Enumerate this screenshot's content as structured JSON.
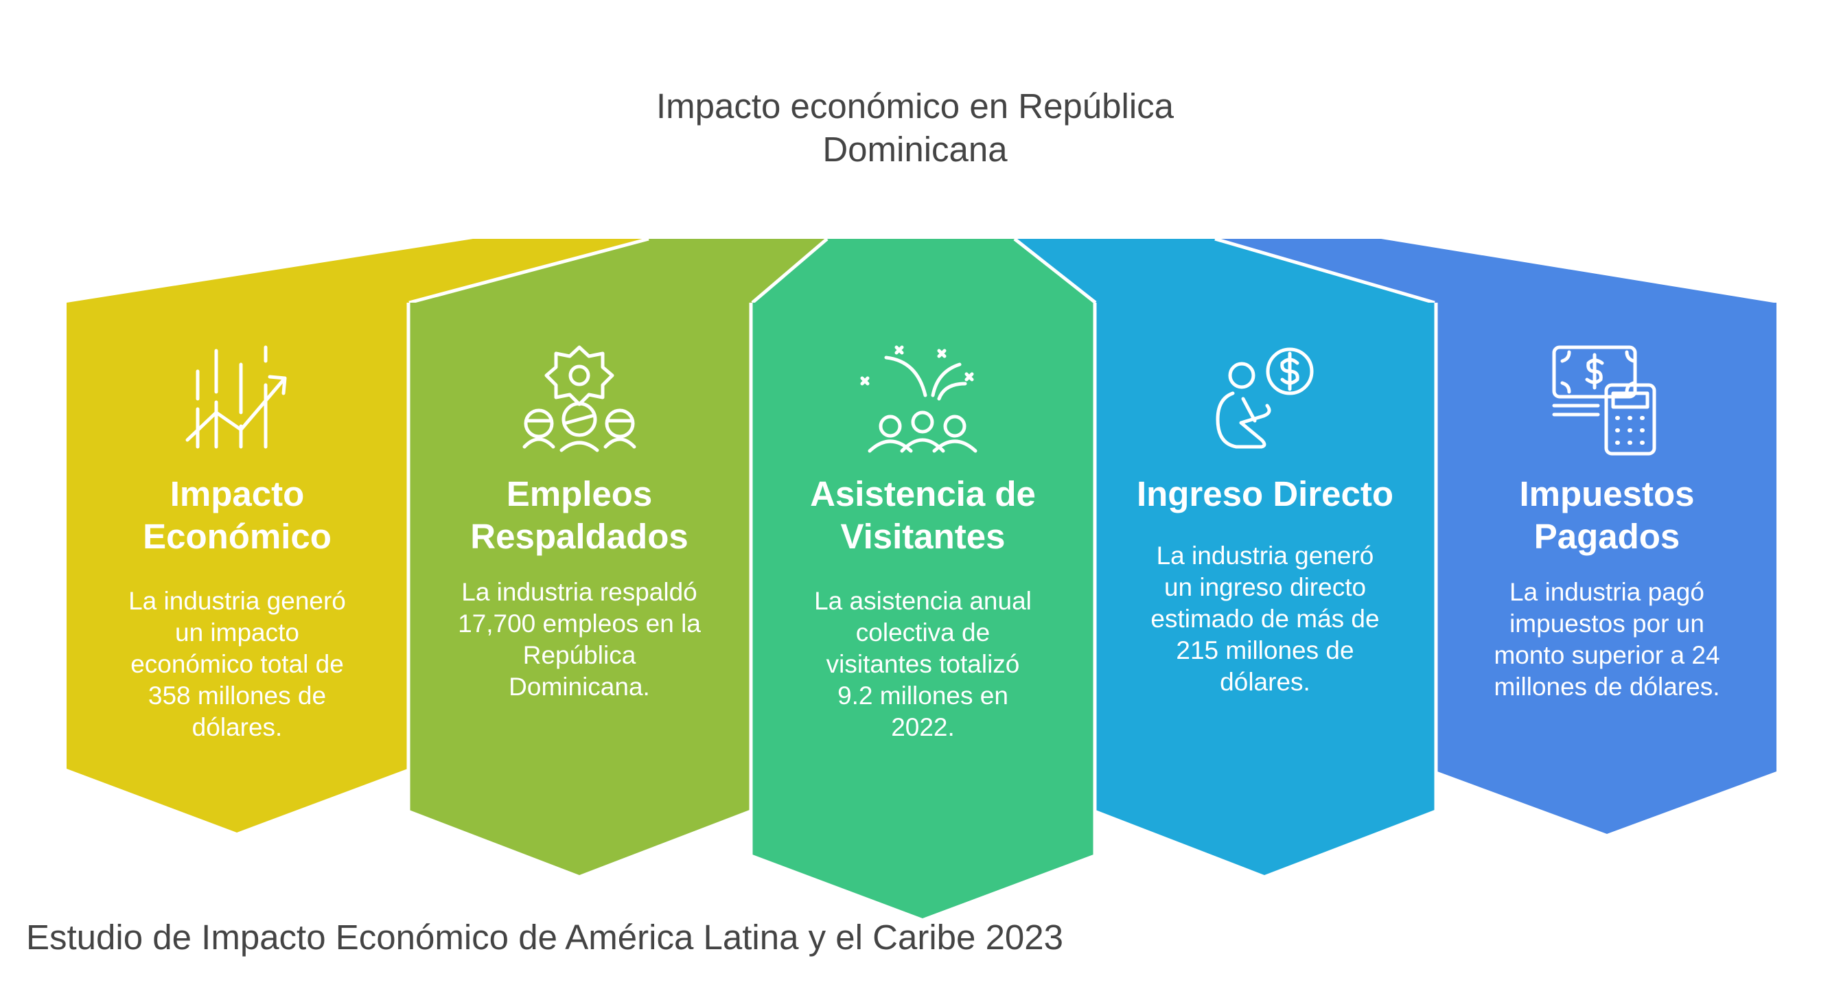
{
  "title": {
    "line1": "Impacto económico en República",
    "line2": "Dominicana"
  },
  "footer": "Estudio de Impacto Económico de América Latina y el Caribe 2023",
  "colors": {
    "yellow": "#DFCB16",
    "olive": "#93BE3E",
    "green": "#3CC583",
    "sky": "#1FA8DA",
    "blue": "#4B87E4",
    "text": "#444444"
  },
  "panels": [
    {
      "icon": "growth-chart-icon",
      "head": [
        "Impacto",
        "Económico"
      ],
      "desc": [
        "La industria generó",
        "un impacto",
        "económico total de",
        "358 millones de",
        "dólares."
      ]
    },
    {
      "icon": "team-gear-icon",
      "head": [
        "Empleos",
        "Respaldados"
      ],
      "desc": [
        "La industria respaldó",
        "17,700 empleos en la",
        "República",
        "Dominicana."
      ]
    },
    {
      "icon": "celebrating-crowd-icon",
      "head": [
        "Asistencia de",
        "Visitantes"
      ],
      "desc": [
        "La asistencia anual",
        "colectiva de",
        "visitantes totalizó",
        "9.2 millones en",
        "2022."
      ]
    },
    {
      "icon": "person-dollar-icon",
      "head": [
        "Ingreso Directo"
      ],
      "desc": [
        "La industria generó",
        "un ingreso directo",
        "estimado de más de",
        "215 millones de",
        "dólares."
      ]
    },
    {
      "icon": "money-calculator-icon",
      "head": [
        "Impuestos",
        "Pagados"
      ],
      "desc": [
        "La industria pagó",
        "impuestos por un",
        "monto superior a 24",
        "millones de dólares."
      ]
    }
  ]
}
